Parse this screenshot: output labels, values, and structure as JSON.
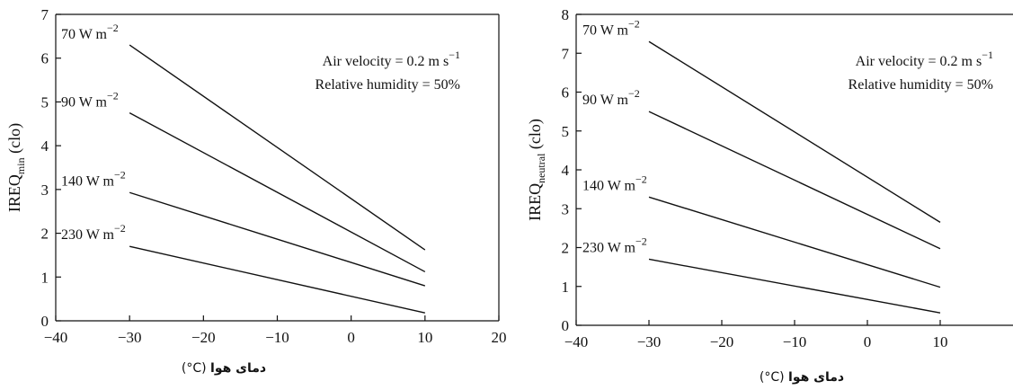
{
  "chart_data": [
    {
      "type": "line",
      "title": "",
      "ylabel": {
        "main": "IREQ",
        "sub": "min",
        "unit": "(clo)"
      },
      "xlabel": {
        "bold": "دمای هوا",
        "unit": "(°C)"
      },
      "xlim": [
        -40,
        20
      ],
      "ylim": [
        0,
        7
      ],
      "xticks": [
        -40,
        -30,
        -20,
        -10,
        0,
        10,
        20
      ],
      "yticks": [
        0,
        1,
        2,
        3,
        4,
        5,
        6,
        7
      ],
      "xtick_labels": [
        "−40",
        "−30",
        "−20",
        "−10",
        "0",
        "10",
        "20"
      ],
      "ytick_labels": [
        "0",
        "1",
        "2",
        "3",
        "4",
        "5",
        "6",
        "7"
      ],
      "grid": false,
      "annotations": [
        "Air velocity = 0.2 m s",
        "Relative humidity = 50%"
      ],
      "annotation_sup": "−1",
      "series": [
        {
          "name": "70 W m",
          "sup": "−2",
          "x": [
            -30,
            10
          ],
          "y": [
            6.3,
            1.62
          ]
        },
        {
          "name": "90 W m",
          "sup": "−2",
          "x": [
            -30,
            10
          ],
          "y": [
            4.75,
            1.12
          ]
        },
        {
          "name": "140 W m",
          "sup": "−2",
          "x": [
            -30,
            10
          ],
          "y": [
            2.93,
            0.8
          ]
        },
        {
          "name": "230 W m",
          "sup": "−2",
          "x": [
            -30,
            10
          ],
          "y": [
            1.7,
            0.18
          ]
        }
      ]
    },
    {
      "type": "line",
      "title": "",
      "ylabel": {
        "main": "IREQ",
        "sub": "neutral",
        "unit": "(clo)"
      },
      "xlabel": {
        "bold": "دمای هوا",
        "unit": "(°C)"
      },
      "xlim": [
        -40,
        20
      ],
      "ylim": [
        0,
        8
      ],
      "xticks": [
        -40,
        -30,
        -20,
        -10,
        0,
        10
      ],
      "yticks": [
        0,
        1,
        2,
        3,
        4,
        5,
        6,
        7,
        8
      ],
      "xtick_labels": [
        "−40",
        "−30",
        "−20",
        "−10",
        "0",
        "10"
      ],
      "ytick_labels": [
        "0",
        "1",
        "2",
        "3",
        "4",
        "5",
        "6",
        "7",
        "8"
      ],
      "grid": false,
      "annotations": [
        "Air velocity = 0.2 m s",
        "Relative humidity = 50%"
      ],
      "annotation_sup": "−1",
      "series": [
        {
          "name": "70 W m",
          "sup": "−2",
          "x": [
            -30,
            10
          ],
          "y": [
            7.3,
            2.65
          ]
        },
        {
          "name": "90 W m",
          "sup": "−2",
          "x": [
            -30,
            10
          ],
          "y": [
            5.5,
            1.97
          ]
        },
        {
          "name": "140 W m",
          "sup": "−2",
          "x": [
            -30,
            10
          ],
          "y": [
            3.3,
            0.98
          ]
        },
        {
          "name": "230 W m",
          "sup": "−2",
          "x": [
            -30,
            10
          ],
          "y": [
            1.7,
            0.32
          ]
        }
      ]
    }
  ]
}
